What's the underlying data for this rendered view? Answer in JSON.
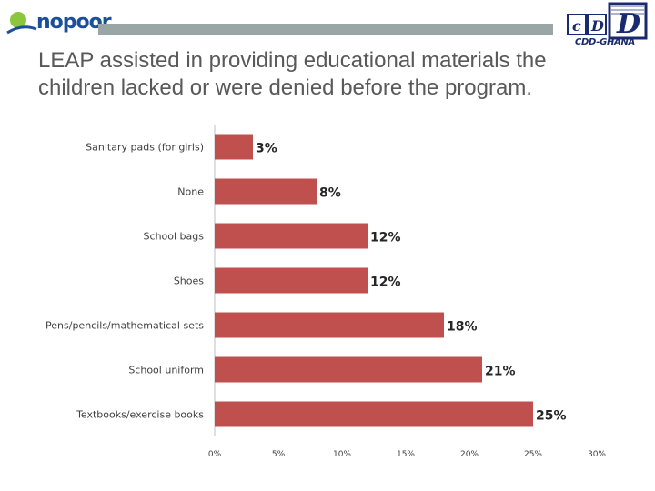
{
  "header": {
    "left_logo_text": "nopoor",
    "right_logo_text": "CDD-GHANA",
    "right_logo_letters": [
      "c",
      "D",
      "D"
    ]
  },
  "slide": {
    "title": "LEAP assisted in providing educational materials the children lacked or were denied before the program."
  },
  "colors": {
    "bar": "#c0504d",
    "logo_green": "#8cc63f",
    "logo_blue": "#1b4f9c",
    "header_bar": "#9aa6a6",
    "logo_navy": "#1b2a6e"
  },
  "chart_data": {
    "type": "bar",
    "orientation": "horizontal",
    "categories": [
      "Sanitary pads (for girls)",
      "None",
      "School bags",
      "Shoes",
      "Pens/pencils/mathematical sets",
      "School uniform",
      "Textbooks/exercise books"
    ],
    "values": [
      3,
      8,
      12,
      12,
      18,
      21,
      25
    ],
    "data_labels": [
      "3%",
      "8%",
      "12%",
      "12%",
      "18%",
      "21%",
      "25%"
    ],
    "xlim": [
      0,
      30
    ],
    "xticks": [
      "0%",
      "5%",
      "10%",
      "15%",
      "20%",
      "25%",
      "30%"
    ],
    "grid": false,
    "legend": "none"
  }
}
